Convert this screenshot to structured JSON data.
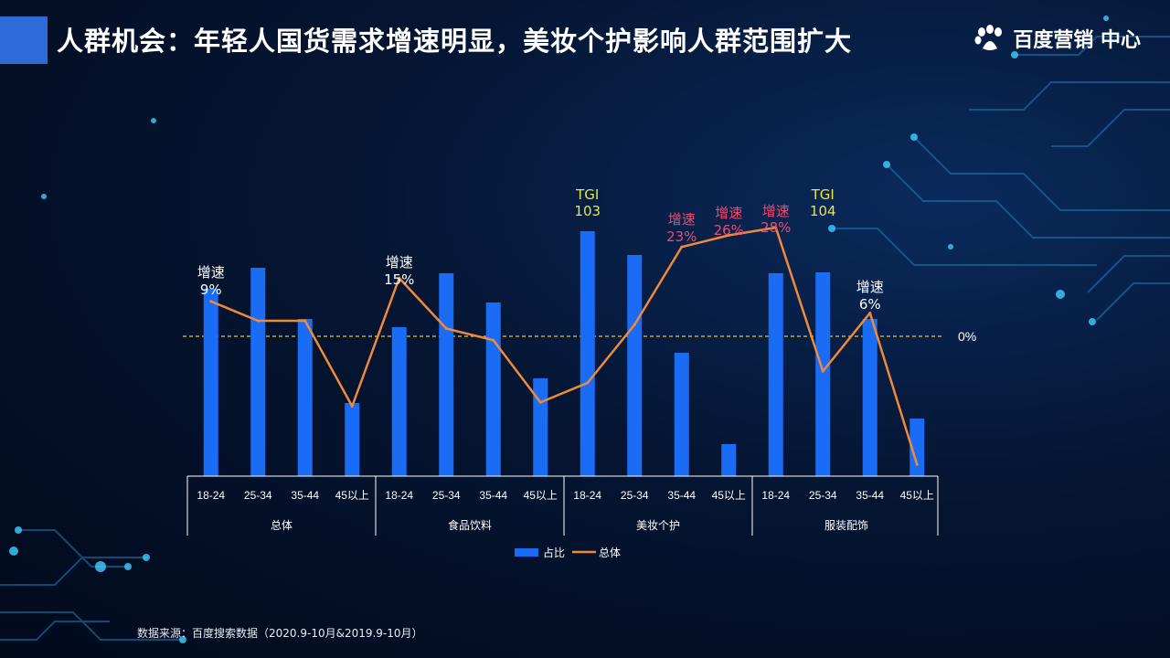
{
  "header": {
    "title": "人群机会：年轻人国货需求增速明显，美妆个护影响人群范围扩大",
    "logo_text": "百度营销 中心"
  },
  "footer": {
    "source": "数据来源：百度搜索数据（2020.9-10月&2019.9-10月）"
  },
  "colors": {
    "accent": "#2f6bd8",
    "bar": "#1a6cf5",
    "line": "#f08a3a",
    "zero_line": "#e8c33a",
    "tgi_text": "#e6e64a",
    "growth_pink": "#f04a6e"
  },
  "chart_data": {
    "type": "bar",
    "groups": [
      {
        "name": "总体",
        "categories": [
          "18-24",
          "25-34",
          "35-44",
          "45以上"
        ]
      },
      {
        "name": "食品饮料",
        "categories": [
          "18-24",
          "25-34",
          "35-44",
          "45以上"
        ]
      },
      {
        "name": "美妆个护",
        "categories": [
          "18-24",
          "25-34",
          "35-44",
          "45以上"
        ]
      },
      {
        "name": "服装配饰",
        "categories": [
          "18-24",
          "25-34",
          "35-44",
          "45以上"
        ]
      }
    ],
    "series": [
      {
        "name": "占比",
        "type": "bar",
        "values": [
          0.205,
          0.228,
          0.172,
          0.08,
          0.163,
          0.222,
          0.19,
          0.107,
          0.268,
          0.242,
          0.135,
          0.035,
          0.222,
          0.223,
          0.172,
          0.063
        ]
      },
      {
        "name": "总体",
        "type": "line",
        "values": [
          9,
          4,
          4,
          -18,
          15,
          2,
          -1,
          -17,
          -12,
          3,
          23,
          26,
          28,
          -9,
          6,
          -33
        ]
      }
    ],
    "zero_label": "0%",
    "annotations": [
      {
        "index": 0,
        "lines": [
          "增速",
          "9%"
        ],
        "style": "white"
      },
      {
        "index": 4,
        "lines": [
          "增速",
          "15%"
        ],
        "style": "white"
      },
      {
        "index": 8,
        "lines": [
          "TGI",
          "103"
        ],
        "style": "tgi"
      },
      {
        "index": 10,
        "lines": [
          "增速",
          "23%"
        ],
        "style": "pink"
      },
      {
        "index": 11,
        "lines": [
          "增速",
          "26%"
        ],
        "style": "pink"
      },
      {
        "index": 12,
        "lines": [
          "增速",
          "28%"
        ],
        "style": "pink"
      },
      {
        "index": 13,
        "lines": [
          "TGI",
          "104"
        ],
        "style": "tgi"
      },
      {
        "index": 14,
        "lines": [
          "增速",
          "6%"
        ],
        "style": "white"
      }
    ],
    "legend": [
      {
        "name": "占比",
        "shape": "rect"
      },
      {
        "name": "总体",
        "shape": "line"
      }
    ]
  }
}
